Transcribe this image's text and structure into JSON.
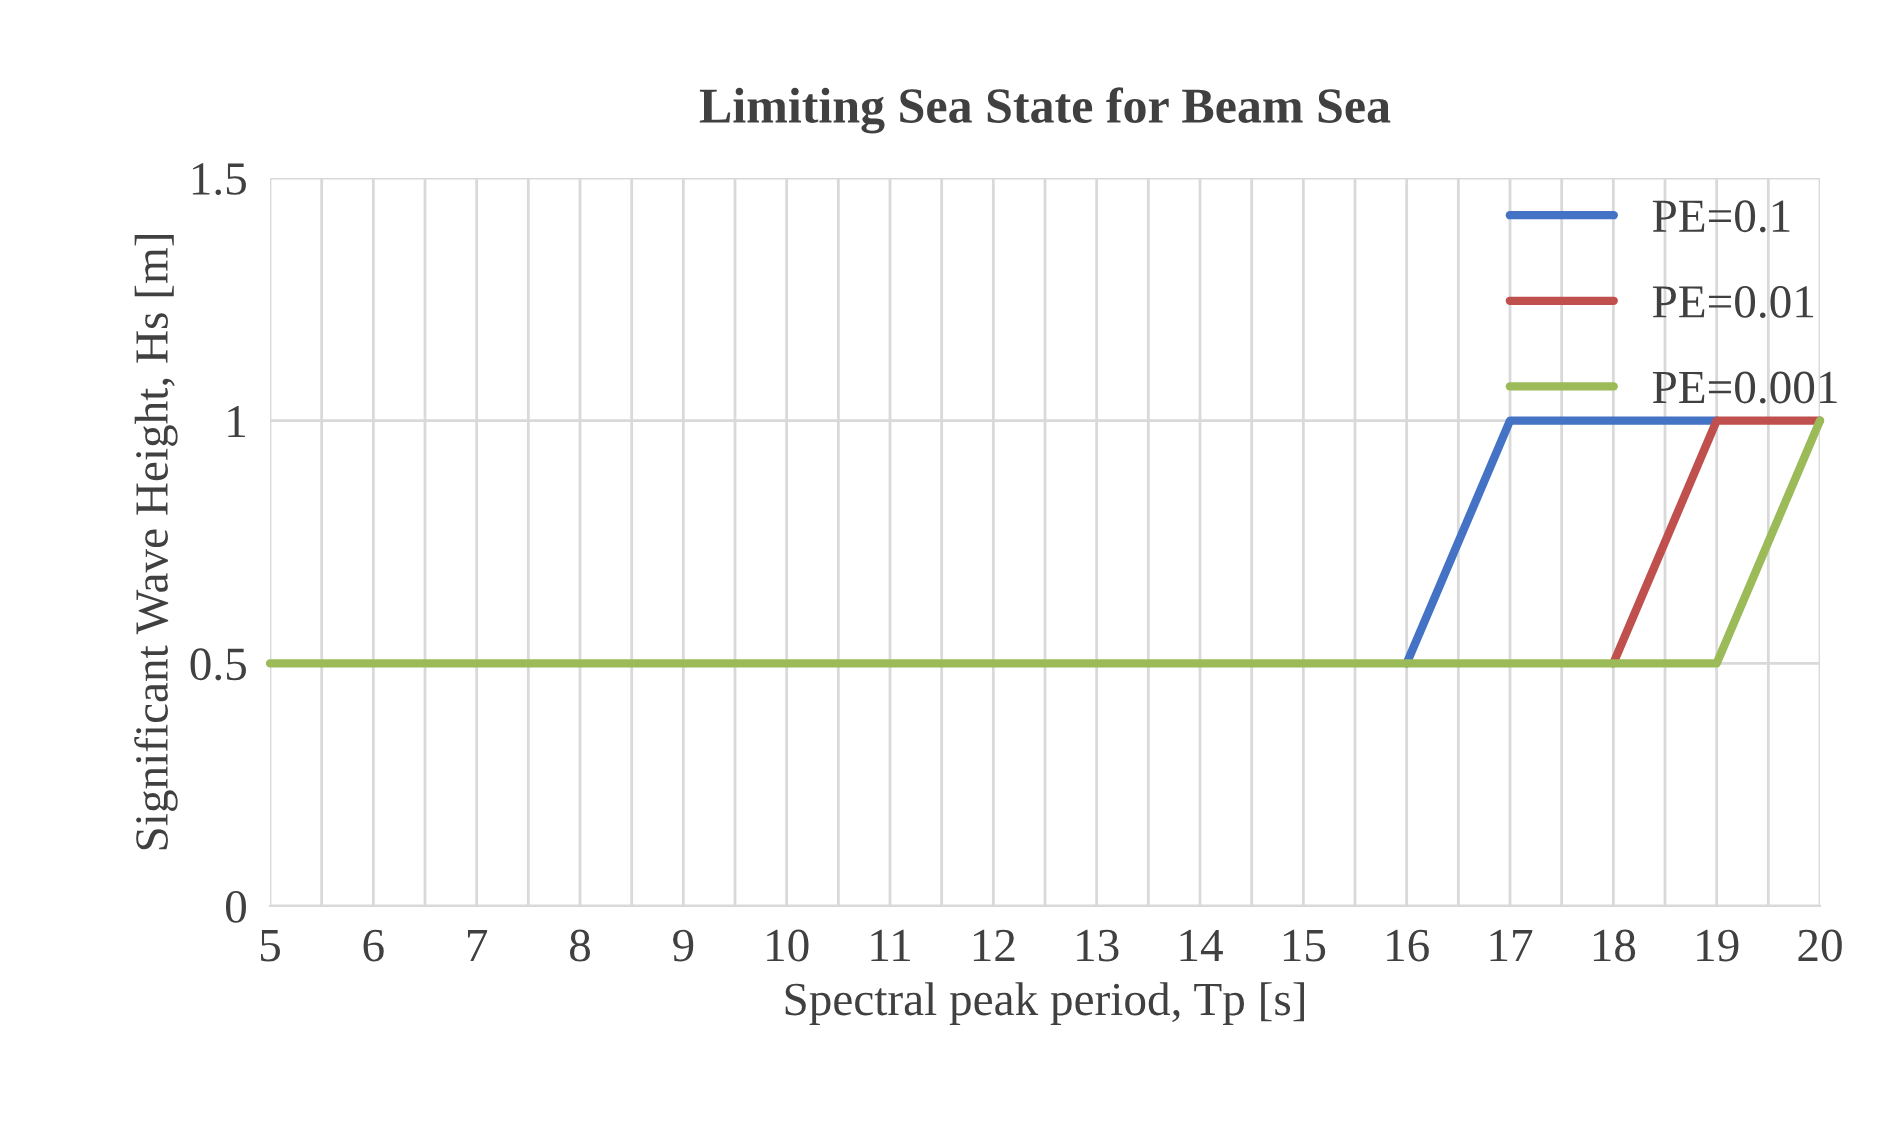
{
  "chart_data": {
    "type": "line",
    "title": "Limiting Sea State for Beam Sea",
    "xlabel": "Spectral peak period, Tp [s]",
    "ylabel": "Significant Wave Height, Hs [m]",
    "x": [
      5,
      6,
      7,
      8,
      9,
      10,
      11,
      12,
      13,
      14,
      15,
      16,
      17,
      18,
      19,
      20
    ],
    "series": [
      {
        "name": "PE=0.1",
        "color": "#4472c4",
        "values": [
          null,
          null,
          null,
          null,
          null,
          null,
          null,
          null,
          null,
          null,
          null,
          0.5,
          1,
          1,
          1,
          null
        ]
      },
      {
        "name": "PE=0.01",
        "color": "#c0504d",
        "values": [
          null,
          null,
          null,
          null,
          null,
          null,
          null,
          null,
          null,
          null,
          null,
          null,
          null,
          0.5,
          1,
          1
        ]
      },
      {
        "name": "PE=0.001",
        "color": "#9bbb59",
        "values": [
          0.5,
          0.5,
          0.5,
          0.5,
          0.5,
          0.5,
          0.5,
          0.5,
          0.5,
          0.5,
          0.5,
          0.5,
          0.5,
          0.5,
          0.5,
          1
        ]
      }
    ],
    "xlim": [
      5,
      20
    ],
    "xticks": [
      5,
      {
        "value": 5.5,
        "label": null
      },
      6,
      {
        "value": 6.5,
        "label": null
      },
      7,
      {
        "value": 7.5,
        "label": null
      },
      8,
      {
        "value": 8.5,
        "label": null
      },
      9,
      {
        "value": 9.5,
        "label": null
      },
      10,
      {
        "value": 10.5,
        "label": null
      },
      11,
      {
        "value": 11.5,
        "label": null
      },
      12,
      {
        "value": 12.5,
        "label": null
      },
      13,
      {
        "value": 13.5,
        "label": null
      },
      14,
      {
        "value": 14.5,
        "label": null
      },
      15,
      {
        "value": 15.5,
        "label": null
      },
      16,
      {
        "value": 16.5,
        "label": null
      },
      17,
      {
        "value": 17.5,
        "label": null
      },
      18,
      {
        "value": 18.5,
        "label": null
      },
      19,
      {
        "value": 19.5,
        "label": null
      },
      20
    ],
    "ylim": [
      0,
      1.5
    ],
    "yticks": [
      0,
      0.5,
      1,
      1.5
    ],
    "grid": true,
    "legend": "top right",
    "marker": "none",
    "line_style": "solid"
  }
}
